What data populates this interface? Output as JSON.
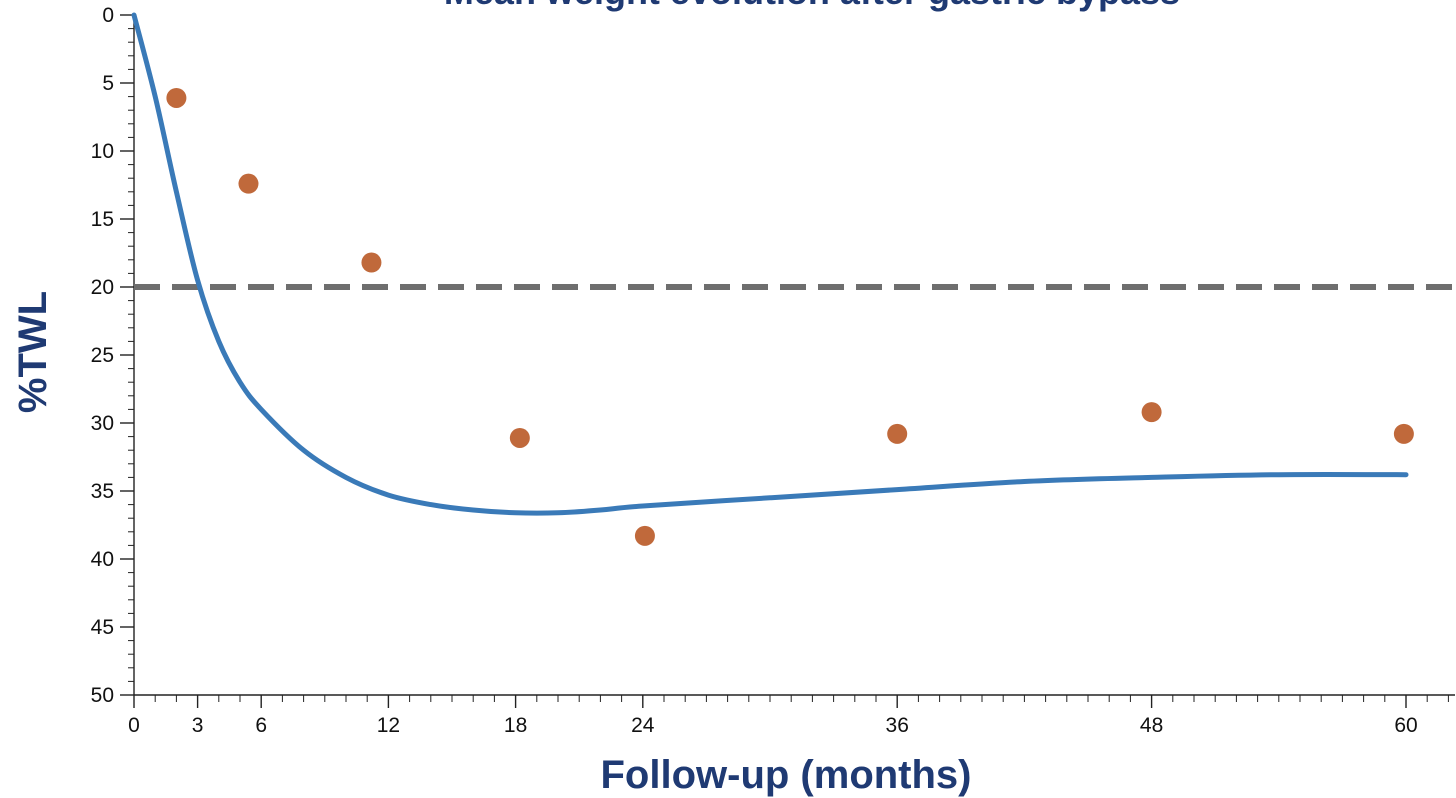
{
  "chart_data": {
    "type": "scatter",
    "title": "Mean weight evolution after gastric bypass",
    "xlabel": "Follow-up (months)",
    "ylabel": "%TWL",
    "xlim": [
      0,
      62
    ],
    "ylim": [
      0,
      50
    ],
    "y_inverted": true,
    "x_ticks": [
      0,
      3,
      6,
      12,
      18,
      24,
      36,
      48,
      60
    ],
    "x_tick_labels": [
      "0",
      "3",
      "6",
      "12",
      "18",
      "24",
      "36",
      "48",
      "60"
    ],
    "y_ticks": [
      0,
      5,
      10,
      15,
      20,
      25,
      30,
      35,
      40,
      45,
      50
    ],
    "y_tick_labels": [
      "0",
      "5",
      "10",
      "15",
      "20",
      "25",
      "30",
      "35",
      "40",
      "45",
      "50"
    ],
    "grid": false,
    "series": [
      {
        "kind": "points",
        "color": "#c0693b",
        "x": [
          2,
          5.4,
          11.2,
          18.2,
          24.1,
          36,
          48,
          59.9
        ],
        "y": [
          6.1,
          12.4,
          18.2,
          31.1,
          38.3,
          30.8,
          29.2,
          30.8
        ]
      },
      {
        "kind": "curve",
        "color": "#3a7ab8",
        "x": [
          0,
          1,
          2,
          3,
          4,
          5,
          6,
          8,
          10,
          12,
          14,
          16,
          18,
          20,
          22,
          24,
          30,
          36,
          42,
          48,
          54,
          60
        ],
        "y": [
          0,
          6,
          13,
          19.5,
          24,
          27,
          29,
          32,
          34,
          35.3,
          36,
          36.4,
          36.6,
          36.6,
          36.4,
          36.1,
          35.5,
          34.9,
          34.3,
          34,
          33.8,
          33.8
        ]
      },
      {
        "kind": "reference-line",
        "color": "#6e6e6e",
        "y": 20
      }
    ]
  }
}
